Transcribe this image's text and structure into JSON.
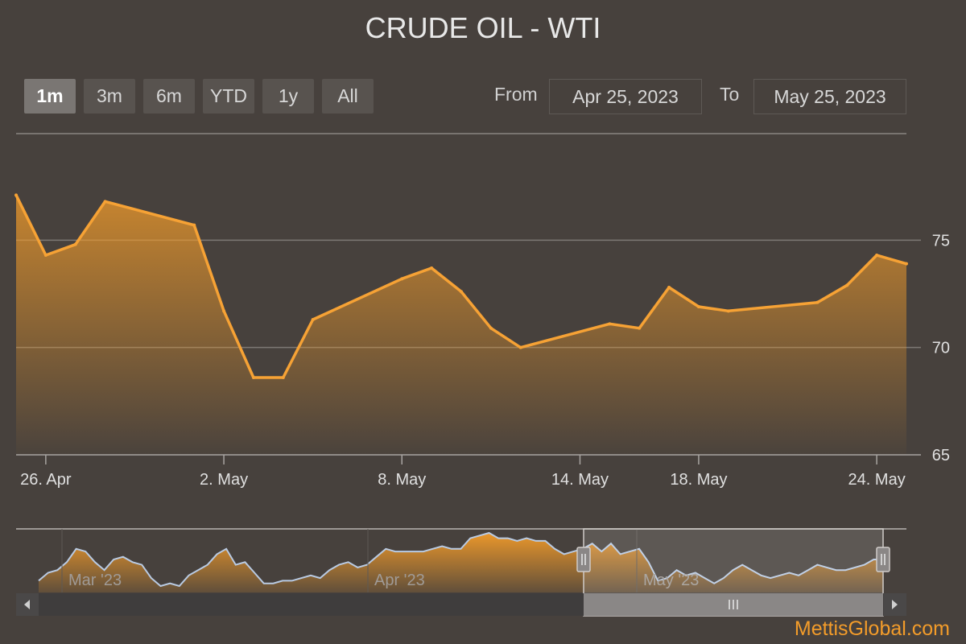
{
  "title": "CRUDE OIL - WTI",
  "range_selector": {
    "buttons": [
      "1m",
      "3m",
      "6m",
      "YTD",
      "1y",
      "All"
    ],
    "active": "1m"
  },
  "date_inputs": {
    "from_label": "From",
    "from_value": "Apr 25, 2023",
    "to_label": "To",
    "to_value": "May 25, 2023"
  },
  "watermark": "MettisGlobal.com",
  "colors": {
    "background": "#47413d",
    "line": "#f6a235",
    "fill_top": "#f39c2a",
    "navigator_line": "#b9cbe4",
    "brand": "#f39c2a"
  },
  "chart_data": {
    "type": "area",
    "title": "CRUDE OIL - WTI",
    "x_range": [
      "2023-04-25",
      "2023-05-25"
    ],
    "ylim": [
      65,
      80
    ],
    "y_ticks": [
      65,
      70,
      75
    ],
    "x_ticks": [
      {
        "date": "2023-04-26",
        "label": "26. Apr"
      },
      {
        "date": "2023-05-02",
        "label": "2. May"
      },
      {
        "date": "2023-05-08",
        "label": "8. May"
      },
      {
        "date": "2023-05-14",
        "label": "14. May"
      },
      {
        "date": "2023-05-18",
        "label": "18. May"
      },
      {
        "date": "2023-05-24",
        "label": "24. May"
      }
    ],
    "grid": true,
    "legend": "none",
    "series": [
      {
        "points": [
          [
            "2023-04-25",
            77.1
          ],
          [
            "2023-04-26",
            74.3
          ],
          [
            "2023-04-27",
            74.8
          ],
          [
            "2023-04-28",
            76.8
          ],
          [
            "2023-05-01",
            75.7
          ],
          [
            "2023-05-02",
            71.7
          ],
          [
            "2023-05-03",
            68.6
          ],
          [
            "2023-05-04",
            68.6
          ],
          [
            "2023-05-05",
            71.3
          ],
          [
            "2023-05-08",
            73.2
          ],
          [
            "2023-05-09",
            73.7
          ],
          [
            "2023-05-10",
            72.6
          ],
          [
            "2023-05-11",
            70.9
          ],
          [
            "2023-05-12",
            70.0
          ],
          [
            "2023-05-15",
            71.1
          ],
          [
            "2023-05-16",
            70.9
          ],
          [
            "2023-05-17",
            72.8
          ],
          [
            "2023-05-18",
            71.9
          ],
          [
            "2023-05-19",
            71.7
          ],
          [
            "2023-05-22",
            72.1
          ],
          [
            "2023-05-23",
            72.9
          ],
          [
            "2023-05-24",
            74.3
          ],
          [
            "2023-05-25",
            73.9
          ]
        ]
      }
    ],
    "navigator": {
      "x_labels": [
        "Mar '23",
        "Apr '23",
        "May '23"
      ],
      "selected_range": [
        "2023-04-25",
        "2023-05-25"
      ]
    }
  }
}
